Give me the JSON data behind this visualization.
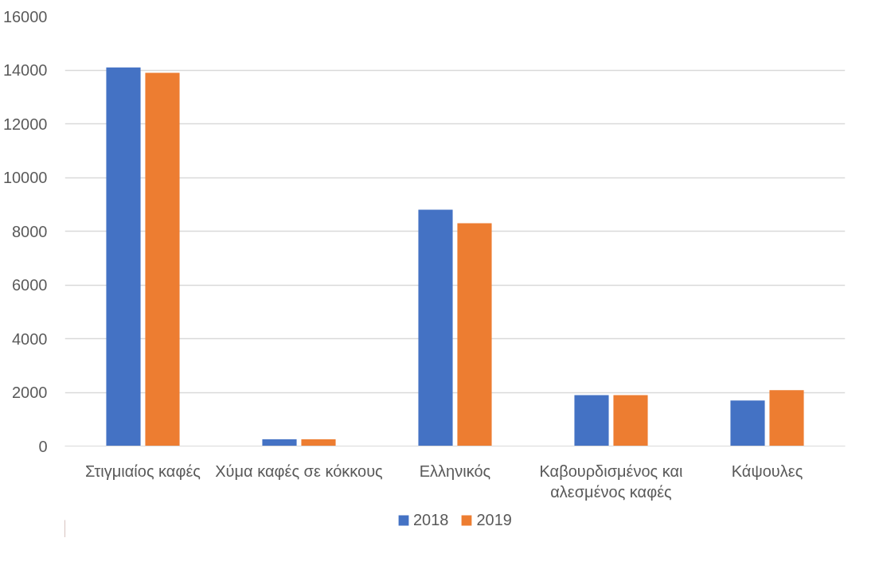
{
  "chart_data": {
    "type": "bar",
    "categories": [
      "Στιγμιαίος καφές",
      "Χύμα καφές σε κόκκους",
      "Ελληνικός",
      "Καβουρδισμένος και αλεσμένος καφές",
      "Κάψουλες"
    ],
    "series": [
      {
        "name": "2018",
        "color": "#4472c4",
        "values": [
          14100,
          250,
          8800,
          1900,
          1700
        ]
      },
      {
        "name": "2019",
        "color": "#ed7d31",
        "values": [
          13900,
          250,
          8300,
          1900,
          2080
        ]
      }
    ],
    "ylim": [
      0,
      16000
    ],
    "yticks": [
      0,
      2000,
      4000,
      6000,
      8000,
      10000,
      12000,
      14000,
      16000
    ],
    "grid": "y",
    "legend": "bottom"
  }
}
